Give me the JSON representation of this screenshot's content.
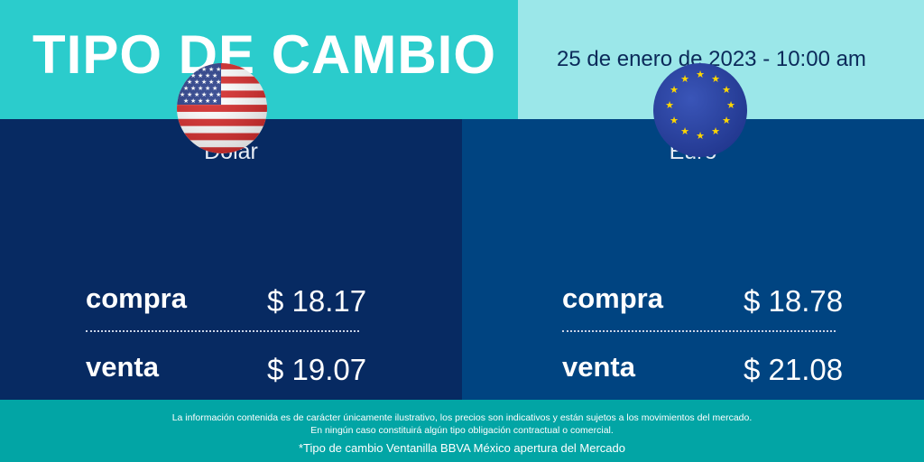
{
  "header": {
    "title": "TIPO DE CAMBIO",
    "datetime": "25 de enero de 2023 - 10:00 am"
  },
  "colors": {
    "title_bg": "#2bcccc",
    "date_bg": "#9be7e9",
    "dollar_panel_bg": "#072a62",
    "euro_panel_bg": "#004481",
    "footer_bg": "#02a5a5"
  },
  "currencies": [
    {
      "name": "Dólar",
      "icon": "us-flag-icon",
      "buy_label": "compra",
      "buy_value": "$ 18.17",
      "sell_label": "venta",
      "sell_value": "$ 19.07"
    },
    {
      "name": "Euro",
      "icon": "eu-flag-icon",
      "buy_label": "compra",
      "buy_value": "$ 18.78",
      "sell_label": "venta",
      "sell_value": "$ 21.08"
    }
  ],
  "footer": {
    "disclaimer_line1": "La información contenida es de carácter únicamente ilustrativo, los precios son indicativos y están sujetos a los movimientos del mercado.",
    "disclaimer_line2": "En ningún caso constituirá algún tipo obligación contractual o comercial.",
    "note": "*Tipo de cambio Ventanilla BBVA México apertura del Mercado"
  }
}
